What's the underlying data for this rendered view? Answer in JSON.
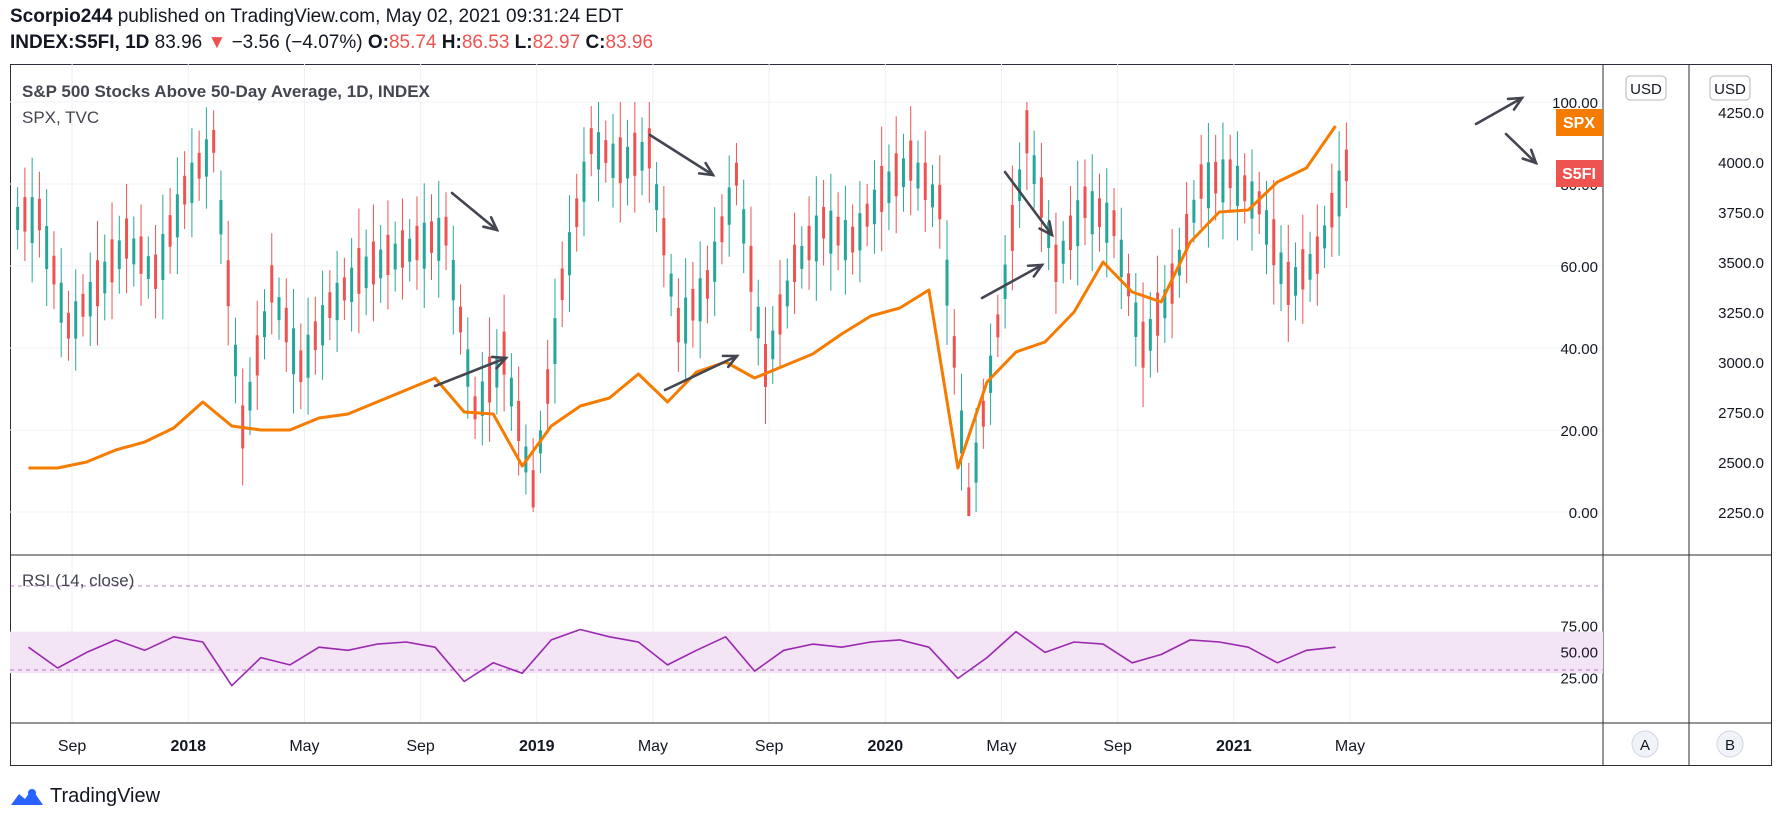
{
  "header": {
    "author": "Scorpio244",
    "published": "published on TradingView.com, May 02, 2021 09:31:24 EDT",
    "symbol": "INDEX:S5FI, 1D",
    "last": "83.96",
    "arrow": "▼",
    "change": "−3.56 (−4.07%)",
    "o_label": "O:",
    "o_value": "85.74",
    "h_label": "H:",
    "h_value": "86.53",
    "l_label": "L:",
    "l_value": "82.97",
    "c_label": "C:",
    "c_value": "83.96"
  },
  "legend": {
    "title": "S&P 500 Stocks Above 50-Day Average, 1D, INDEX",
    "overlay": "SPX, TVC",
    "rsi": "RSI (14, close)"
  },
  "scales": {
    "unit_a": "USD",
    "unit_b": "USD",
    "button_a": "A",
    "button_b": "B",
    "s5fi_ticks": [
      "100.00",
      "80.00",
      "60.00",
      "40.00",
      "20.00",
      "0.00"
    ],
    "spx_ticks": [
      "4250.0",
      "4000.0",
      "3750.0",
      "3500.0",
      "3250.0",
      "3000.0",
      "2750.0",
      "2500.0",
      "2250.0"
    ],
    "rsi_ticks": [
      "75.00",
      "50.00",
      "25.00"
    ],
    "x_ticks": [
      "Sep",
      "2018",
      "May",
      "Sep",
      "2019",
      "May",
      "Sep",
      "2020",
      "May",
      "Sep",
      "2021",
      "May"
    ],
    "spx_tag": "SPX",
    "s5fi_tag": "S5FI"
  },
  "colors": {
    "spx": "#f57c00",
    "candle_up": "#26a69a",
    "candle_down": "#ef5350",
    "rsi_line": "#9c27b0",
    "rsi_band": "#f3e5f5",
    "s5fi_tag": "#ef5350",
    "spx_tag": "#f57c00",
    "arrows": "#434651"
  },
  "brand": {
    "name": "TradingView"
  },
  "chart_data": [
    {
      "type": "line",
      "title": "S&P 500 Stocks Above 50-Day Average, 1D, INDEX",
      "series": [
        {
          "name": "S5FI",
          "style": "candles",
          "x": [
            "2017-07",
            "2017-08",
            "2017-09",
            "2017-10",
            "2017-11",
            "2017-12",
            "2018-01",
            "2018-02",
            "2018-03",
            "2018-04",
            "2018-05",
            "2018-06",
            "2018-07",
            "2018-08",
            "2018-09",
            "2018-10",
            "2018-11",
            "2018-12",
            "2019-01",
            "2019-02",
            "2019-03",
            "2019-04",
            "2019-05",
            "2019-06",
            "2019-07",
            "2019-08",
            "2019-09",
            "2019-10",
            "2019-11",
            "2019-12",
            "2020-01",
            "2020-02",
            "2020-03",
            "2020-04",
            "2020-05",
            "2020-06",
            "2020-07",
            "2020-08",
            "2020-09",
            "2020-10",
            "2020-11",
            "2020-12",
            "2021-01",
            "2021-02",
            "2021-03",
            "2021-04"
          ],
          "values": [
            72,
            45,
            55,
            66,
            58,
            78,
            90,
            20,
            55,
            35,
            50,
            58,
            62,
            65,
            68,
            25,
            38,
            5,
            55,
            90,
            85,
            88,
            45,
            55,
            82,
            35,
            60,
            70,
            66,
            78,
            85,
            75,
            2,
            45,
            92,
            60,
            75,
            70,
            40,
            55,
            80,
            82,
            75,
            55,
            62,
            84
          ]
        },
        {
          "name": "SPX",
          "style": "line",
          "x": [
            "2017-07",
            "2017-08",
            "2017-09",
            "2017-10",
            "2017-11",
            "2017-12",
            "2018-01",
            "2018-02",
            "2018-03",
            "2018-04",
            "2018-05",
            "2018-06",
            "2018-07",
            "2018-08",
            "2018-09",
            "2018-10",
            "2018-11",
            "2018-12",
            "2019-01",
            "2019-02",
            "2019-03",
            "2019-04",
            "2019-05",
            "2019-06",
            "2019-07",
            "2019-08",
            "2019-09",
            "2019-10",
            "2019-11",
            "2019-12",
            "2020-01",
            "2020-02",
            "2020-03",
            "2020-04",
            "2020-05",
            "2020-06",
            "2020-07",
            "2020-08",
            "2020-09",
            "2020-10",
            "2020-11",
            "2020-12",
            "2021-01",
            "2021-02",
            "2021-03",
            "2021-04"
          ],
          "values": [
            2470,
            2470,
            2500,
            2560,
            2600,
            2670,
            2800,
            2680,
            2660,
            2660,
            2720,
            2740,
            2800,
            2860,
            2920,
            2750,
            2740,
            2480,
            2680,
            2780,
            2820,
            2940,
            2800,
            2950,
            3000,
            2920,
            2980,
            3040,
            3140,
            3230,
            3270,
            3360,
            2470,
            2900,
            3050,
            3100,
            3250,
            3500,
            3350,
            3300,
            3600,
            3750,
            3760,
            3900,
            3970,
            4180
          ]
        }
      ],
      "y_left": {
        "unit": "",
        "ylim": [
          0,
          100
        ]
      },
      "y_right": {
        "unit": "USD",
        "ylim": [
          2250,
          4250
        ]
      },
      "annotations": [
        "SPX",
        "S5FI"
      ]
    },
    {
      "type": "line",
      "title": "RSI (14, close)",
      "series": [
        {
          "name": "RSI",
          "x": [
            "2017-07",
            "2017-08",
            "2017-09",
            "2017-10",
            "2017-11",
            "2017-12",
            "2018-01",
            "2018-02",
            "2018-03",
            "2018-04",
            "2018-05",
            "2018-06",
            "2018-07",
            "2018-08",
            "2018-09",
            "2018-10",
            "2018-11",
            "2018-12",
            "2019-01",
            "2019-02",
            "2019-03",
            "2019-04",
            "2019-05",
            "2019-06",
            "2019-07",
            "2019-08",
            "2019-09",
            "2019-10",
            "2019-11",
            "2019-12",
            "2020-01",
            "2020-02",
            "2020-03",
            "2020-04",
            "2020-05",
            "2020-06",
            "2020-07",
            "2020-08",
            "2020-09",
            "2020-10",
            "2020-11",
            "2020-12",
            "2021-01",
            "2021-02",
            "2021-03",
            "2021-04"
          ],
          "values": [
            55,
            35,
            50,
            62,
            52,
            65,
            60,
            18,
            45,
            38,
            55,
            52,
            58,
            60,
            55,
            22,
            40,
            30,
            62,
            72,
            65,
            60,
            38,
            52,
            65,
            32,
            52,
            58,
            55,
            60,
            62,
            55,
            25,
            45,
            70,
            50,
            60,
            58,
            40,
            48,
            62,
            60,
            55,
            40,
            52,
            55
          ]
        }
      ],
      "band": [
        30,
        70
      ],
      "ylim": [
        10,
        80
      ]
    }
  ]
}
